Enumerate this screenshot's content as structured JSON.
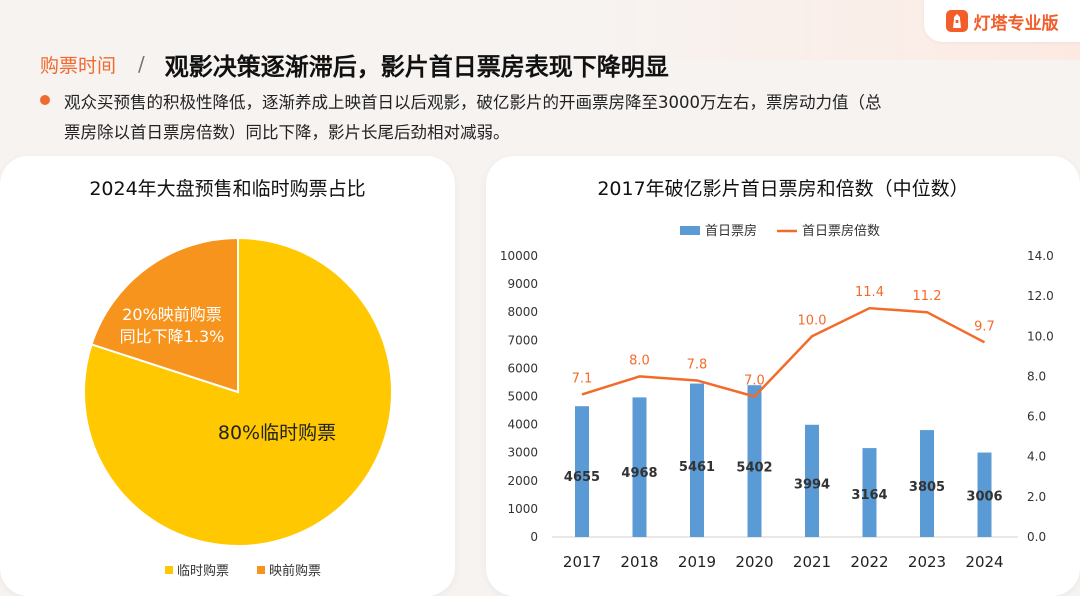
{
  "brand": {
    "label": "灯塔专业版",
    "icon": "lighthouse-icon",
    "color": "#f25d2a"
  },
  "header": {
    "section_tag": "购票时间",
    "separator": "/",
    "title": "观影决策逐渐滞后，影片首日票房表现下降明显"
  },
  "bullet": {
    "line1": "观众买预售的积极性降低，逐渐养成上映首日以后观影，破亿影片的开画票房降至3000万左右，票房动力值（总",
    "line2": "票房除以首日票房倍数）同比下降，影片长尾后劲相对减弱。"
  },
  "chart_data": [
    {
      "type": "pie",
      "title": "2024年大盘预售和临时购票占比",
      "slices": [
        {
          "label": "临时购票",
          "value": 80,
          "color": "#ffc800",
          "annotation": "80%临时购票"
        },
        {
          "label": "映前购票",
          "value": 20,
          "color": "#f7941d",
          "annotation_lines": [
            "20%映前购票",
            "同比下降1.3%"
          ]
        }
      ],
      "legend": {
        "position": "bottom"
      }
    },
    {
      "type": "bar",
      "title": "2017年破亿影片首日票房和倍数（中位数）",
      "categories": [
        "2017",
        "2018",
        "2019",
        "2020",
        "2021",
        "2022",
        "2023",
        "2024"
      ],
      "series": [
        {
          "name": "首日票房",
          "type": "bar",
          "axis": "left",
          "color": "#5b9bd5",
          "values": [
            4655,
            4968,
            5461,
            5402,
            3994,
            3164,
            3805,
            3006
          ],
          "labels": [
            "4655",
            "4968",
            "5461",
            "5402",
            "3994",
            "3164",
            "3805",
            "3006"
          ]
        },
        {
          "name": "首日票房倍数",
          "type": "line",
          "axis": "right",
          "color": "#f36b2b",
          "values": [
            7.1,
            8.0,
            7.8,
            7.0,
            10.0,
            11.4,
            11.2,
            9.7
          ],
          "labels": [
            "7.1",
            "8.0",
            "7.8",
            "7.0",
            "10.0",
            "11.4",
            "11.2",
            "9.7"
          ]
        }
      ],
      "y_left": {
        "min": 0,
        "max": 10000,
        "ticks": [
          "0",
          "1000",
          "2000",
          "3000",
          "4000",
          "5000",
          "6000",
          "7000",
          "8000",
          "9000",
          "10000"
        ]
      },
      "y_right": {
        "min": 0,
        "max": 14,
        "ticks": [
          "0.0",
          "2.0",
          "4.0",
          "6.0",
          "8.0",
          "10.0",
          "12.0",
          "14.0"
        ]
      },
      "legend": {
        "position": "top"
      },
      "grid": false
    }
  ]
}
